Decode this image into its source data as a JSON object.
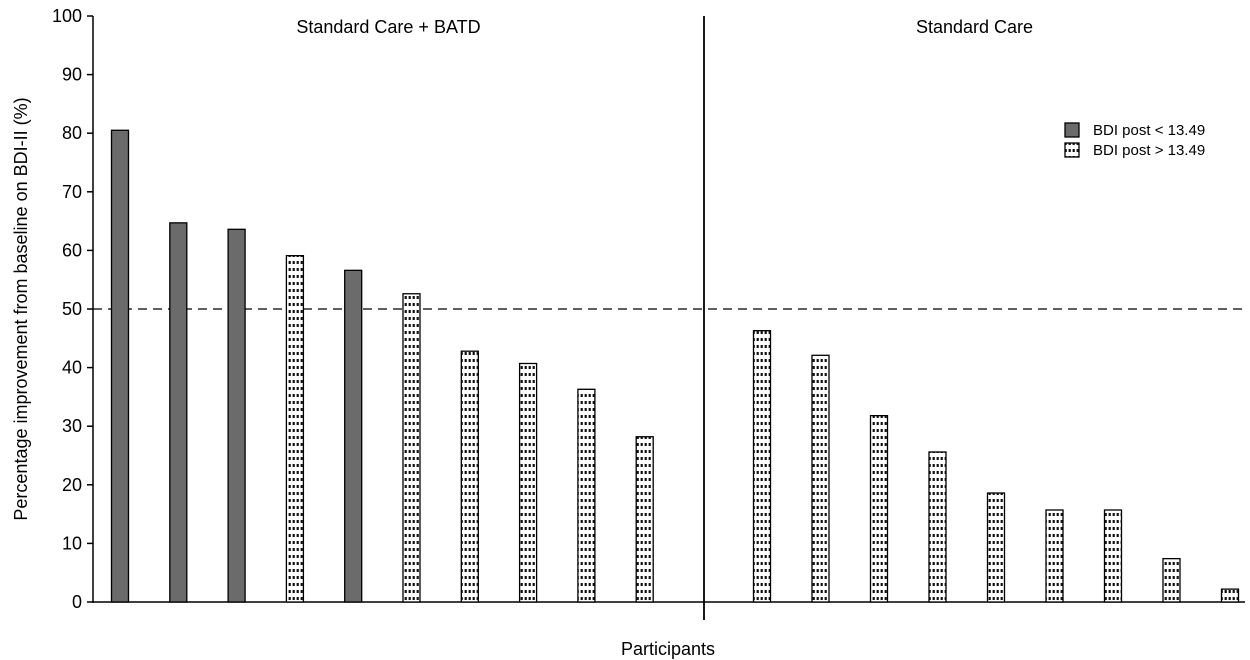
{
  "chart_data": {
    "type": "bar",
    "ylabel": "Percentage improvement from baseline on BDI-II (%)",
    "xlabel": "Participants",
    "ylim": [
      0,
      100
    ],
    "yticks": [
      0,
      10,
      20,
      30,
      40,
      50,
      60,
      70,
      80,
      90,
      100
    ],
    "reference_line": {
      "y": 50,
      "style": "dashed"
    },
    "groups": [
      {
        "label": "Standard Care + BATD",
        "bars": [
          {
            "value": 80.5,
            "series": "below"
          },
          {
            "value": 64.7,
            "series": "below"
          },
          {
            "value": 63.6,
            "series": "below"
          },
          {
            "value": 59.1,
            "series": "above"
          },
          {
            "value": 56.6,
            "series": "below"
          },
          {
            "value": 52.6,
            "series": "above"
          },
          {
            "value": 42.8,
            "series": "above"
          },
          {
            "value": 40.7,
            "series": "above"
          },
          {
            "value": 36.3,
            "series": "above"
          },
          {
            "value": 28.2,
            "series": "above"
          }
        ]
      },
      {
        "label": "Standard Care",
        "bars": [
          {
            "value": 46.3,
            "series": "above"
          },
          {
            "value": 42.1,
            "series": "above"
          },
          {
            "value": 31.8,
            "series": "above"
          },
          {
            "value": 25.6,
            "series": "above"
          },
          {
            "value": 18.6,
            "series": "above"
          },
          {
            "value": 15.7,
            "series": "above"
          },
          {
            "value": 15.7,
            "series": "above"
          },
          {
            "value": 7.4,
            "series": "above"
          },
          {
            "value": 2.2,
            "series": "above"
          }
        ]
      }
    ],
    "series": [
      {
        "id": "below",
        "name": "BDI post < 13.49",
        "fill": "solid",
        "color": "#6b6b6b"
      },
      {
        "id": "above",
        "name": "BDI post > 13.49",
        "fill": "dotted",
        "color": "#ffffff"
      }
    ],
    "legend_position": "top-right",
    "grid": false
  }
}
